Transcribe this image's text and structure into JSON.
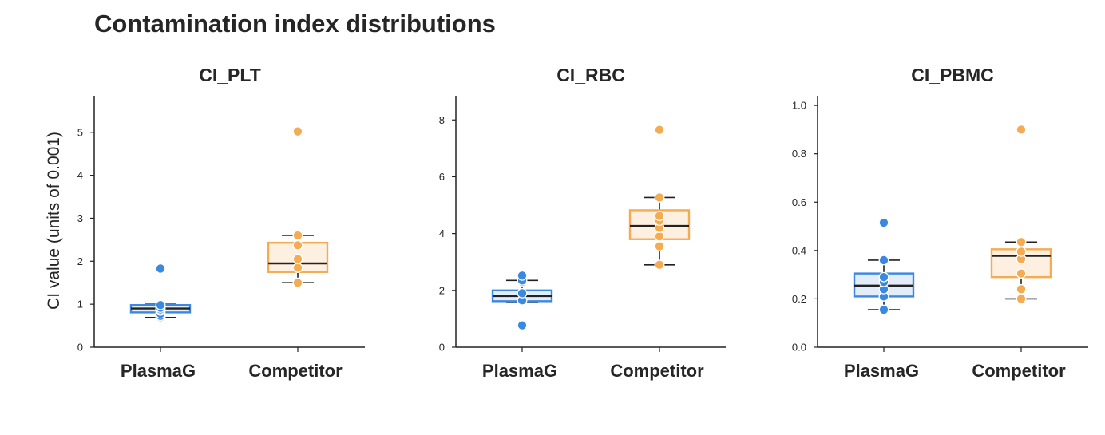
{
  "title": "Contamination index distributions",
  "colors": {
    "PlasmaG": "#3b88e0",
    "Competitor": "#f5ab52",
    "PlasmaG_fill": "#e2edf9",
    "Competitor_fill": "#fdf0e1"
  },
  "chart_data": [
    {
      "type": "box",
      "title": "CI_PLT",
      "ylabel": "CI value (units of 0.001)",
      "categories": [
        "PlasmaG",
        "Competitor"
      ],
      "ylim": [
        0,
        5.85
      ],
      "yticks": [
        0,
        1,
        2,
        3,
        4,
        5
      ],
      "yticklabels": [
        "0",
        "1",
        "2",
        "3",
        "4",
        "5"
      ],
      "boxes": [
        {
          "name": "PlasmaG",
          "q1": 0.81,
          "median": 0.9,
          "q3": 0.98,
          "whisker_low": 0.69,
          "whisker_high": 1.0,
          "points": [
            0.7,
            0.73,
            0.78,
            0.85,
            0.88,
            0.92,
            0.98,
            1.83
          ]
        },
        {
          "name": "Competitor",
          "q1": 1.75,
          "median": 1.95,
          "q3": 2.43,
          "whisker_low": 1.5,
          "whisker_high": 2.6,
          "points": [
            1.5,
            1.85,
            2.05,
            2.37,
            2.6,
            5.02
          ]
        }
      ]
    },
    {
      "type": "box",
      "title": "CI_RBC",
      "ylabel": "",
      "categories": [
        "PlasmaG",
        "Competitor"
      ],
      "ylim": [
        0,
        8.85
      ],
      "yticks": [
        0,
        2,
        4,
        6,
        8
      ],
      "yticklabels": [
        "0",
        "2",
        "4",
        "6",
        "8"
      ],
      "boxes": [
        {
          "name": "PlasmaG",
          "q1": 1.62,
          "median": 1.8,
          "q3": 2.0,
          "whisker_low": 1.6,
          "whisker_high": 2.35,
          "points": [
            0.77,
            1.65,
            1.9,
            2.3,
            2.35,
            2.52
          ]
        },
        {
          "name": "Competitor",
          "q1": 3.8,
          "median": 4.27,
          "q3": 4.82,
          "whisker_low": 2.9,
          "whisker_high": 5.27,
          "points": [
            2.9,
            3.55,
            3.9,
            4.2,
            4.45,
            4.62,
            5.27,
            7.65
          ]
        }
      ]
    },
    {
      "type": "box",
      "title": "CI_PBMC",
      "ylabel": "",
      "categories": [
        "PlasmaG",
        "Competitor"
      ],
      "ylim": [
        0,
        1.04
      ],
      "yticks": [
        0,
        0.2,
        0.4,
        0.6,
        0.8,
        1.0
      ],
      "yticklabels": [
        "0.0",
        "0.2",
        "0.4",
        "0.6",
        "0.8",
        "1.0"
      ],
      "boxes": [
        {
          "name": "PlasmaG",
          "q1": 0.21,
          "median": 0.255,
          "q3": 0.305,
          "whisker_low": 0.155,
          "whisker_high": 0.36,
          "points": [
            0.155,
            0.21,
            0.24,
            0.27,
            0.29,
            0.36,
            0.515
          ]
        },
        {
          "name": "Competitor",
          "q1": 0.29,
          "median": 0.378,
          "q3": 0.405,
          "whisker_low": 0.2,
          "whisker_high": 0.435,
          "points": [
            0.2,
            0.24,
            0.305,
            0.365,
            0.395,
            0.435,
            0.9
          ]
        }
      ]
    }
  ]
}
